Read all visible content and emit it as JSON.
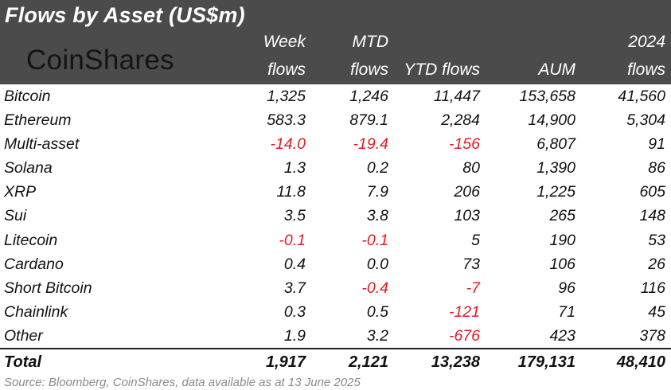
{
  "title": "Flows by Asset (US$m)",
  "logo": "CoinShares",
  "columns": [
    {
      "line1": "Week",
      "line2": "flows"
    },
    {
      "line1": "MTD",
      "line2": "flows"
    },
    {
      "line1": "",
      "line2": "YTD flows"
    },
    {
      "line1": "",
      "line2": "AUM"
    },
    {
      "line1": "2024",
      "line2": "flows"
    }
  ],
  "rows": [
    {
      "name": "Bitcoin",
      "values": [
        "1,325",
        "1,246",
        "11,447",
        "153,658",
        "41,560"
      ]
    },
    {
      "name": "Ethereum",
      "values": [
        "583.3",
        "879.1",
        "2,284",
        "14,900",
        "5,304"
      ]
    },
    {
      "name": "Multi-asset",
      "values": [
        "-14.0",
        "-19.4",
        "-156",
        "6,807",
        "91"
      ]
    },
    {
      "name": "Solana",
      "values": [
        "1.3",
        "0.2",
        "80",
        "1,390",
        "86"
      ]
    },
    {
      "name": "XRP",
      "values": [
        "11.8",
        "7.9",
        "206",
        "1,225",
        "605"
      ]
    },
    {
      "name": "Sui",
      "values": [
        "3.5",
        "3.8",
        "103",
        "265",
        "148"
      ]
    },
    {
      "name": "Litecoin",
      "values": [
        "-0.1",
        "-0.1",
        "5",
        "190",
        "53"
      ]
    },
    {
      "name": "Cardano",
      "values": [
        "0.4",
        "0.0",
        "73",
        "106",
        "26"
      ]
    },
    {
      "name": "Short Bitcoin",
      "values": [
        "3.7",
        "-0.4",
        "-7",
        "96",
        "116"
      ]
    },
    {
      "name": "Chainlink",
      "values": [
        "0.3",
        "0.5",
        "-121",
        "71",
        "45"
      ]
    },
    {
      "name": "Other",
      "values": [
        "1.9",
        "3.2",
        "-676",
        "423",
        "378"
      ]
    }
  ],
  "total": {
    "name": "Total",
    "values": [
      "1,917",
      "2,121",
      "13,238",
      "179,131",
      "48,410"
    ]
  },
  "source": "Source: Bloomberg, CoinShares, data available as at 13 June 2025",
  "colors": {
    "header_bg": "#4b4b4b",
    "negative": "#e01b24",
    "source_text": "#8a8a8a"
  }
}
